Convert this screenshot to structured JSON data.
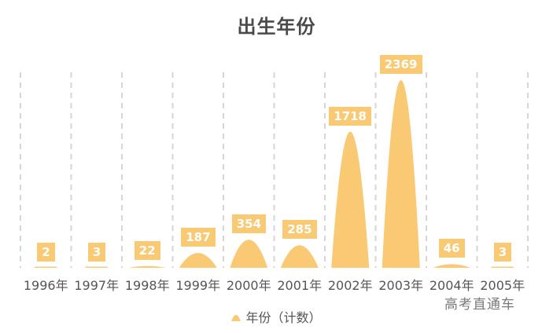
{
  "title": "出生年份",
  "legend": {
    "label": "年份（计数）",
    "icon": "triangle-peak-icon"
  },
  "watermark": "高考直通车",
  "colors": {
    "bar": "#f9c974",
    "grid": "#d6d6d6",
    "title": "#4a4a4a",
    "axis_text": "#555555"
  },
  "chart_data": {
    "type": "bar",
    "subtype": "pictorial-peak",
    "title": "出生年份",
    "categories": [
      "1996年",
      "1997年",
      "1998年",
      "1999年",
      "2000年",
      "2001年",
      "2002年",
      "2003年",
      "2004年",
      "2005年"
    ],
    "series": [
      {
        "name": "年份（计数）",
        "values": [
          2,
          3,
          22,
          187,
          354,
          285,
          1718,
          2369,
          46,
          3
        ]
      }
    ],
    "value_labels": [
      "2",
      "3",
      "22",
      "187",
      "354",
      "285",
      "1718",
      "2369",
      "46",
      "3"
    ],
    "xlabel": "",
    "ylabel": "",
    "ylim": [
      0,
      2369
    ],
    "grid": {
      "vertical_dashed": true,
      "horizontal": false
    },
    "legend_position": "bottom"
  }
}
